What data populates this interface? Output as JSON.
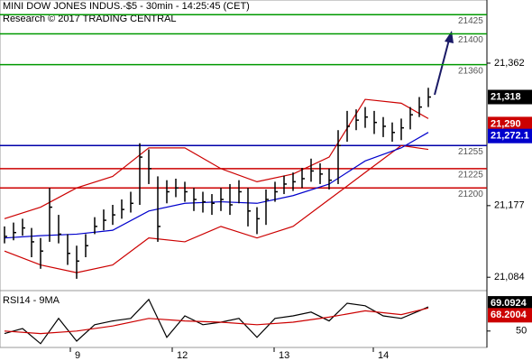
{
  "chart_data": {
    "type": "ohlc",
    "title": "MINI DOW JONES INDUS.-$5 - 30min - 14:25:45 (CET)",
    "subtitle": "Research © 2017 TRADING CENTRAL",
    "x": [
      0,
      1,
      2,
      3,
      4,
      5,
      6,
      7,
      8,
      9,
      10,
      11,
      12,
      13,
      14,
      15,
      16,
      17,
      18,
      19,
      20,
      21,
      22,
      23,
      24,
      25,
      26,
      27,
      28,
      29,
      30,
      31,
      32,
      33,
      34,
      35,
      36,
      37,
      38,
      39,
      40,
      41,
      42,
      43,
      44,
      45,
      46,
      47
    ],
    "high": [
      21150,
      21155,
      21160,
      21148,
      21135,
      21200,
      21165,
      21140,
      21125,
      21140,
      21162,
      21172,
      21178,
      21185,
      21195,
      21258,
      21250,
      21215,
      21210,
      21212,
      21208,
      21200,
      21195,
      21192,
      21200,
      21205,
      21210,
      21200,
      21175,
      21198,
      21208,
      21216,
      21220,
      21226,
      21238,
      21232,
      21225,
      21275,
      21300,
      21302,
      21305,
      21300,
      21292,
      21285,
      21290,
      21305,
      21318,
      21330
    ],
    "low": [
      21128,
      21132,
      21138,
      21110,
      21095,
      21130,
      21128,
      21100,
      21082,
      21110,
      21140,
      21145,
      21152,
      21160,
      21168,
      21178,
      21205,
      21130,
      21180,
      21188,
      21182,
      21170,
      21168,
      21165,
      21170,
      21165,
      21180,
      21150,
      21140,
      21152,
      21182,
      21192,
      21196,
      21200,
      21208,
      21205,
      21198,
      21205,
      21260,
      21275,
      21278,
      21270,
      21266,
      21260,
      21262,
      21276,
      21292,
      21305
    ],
    "close": [
      21137,
      21142,
      21148,
      21130,
      21118,
      21175,
      21140,
      21115,
      21105,
      21125,
      21150,
      21158,
      21165,
      21172,
      21180,
      21240,
      21225,
      21150,
      21195,
      21200,
      21195,
      21185,
      21182,
      21180,
      21185,
      21178,
      21195,
      21170,
      21160,
      21185,
      21195,
      21205,
      21208,
      21212,
      21222,
      21218,
      21210,
      21255,
      21280,
      21288,
      21292,
      21285,
      21280,
      21272,
      21278,
      21295,
      21305,
      21318
    ],
    "close_label": "21,318",
    "color": "#000000",
    "series": [
      {
        "x": [
          0,
          4,
          8,
          12,
          16,
          20,
          24,
          28,
          32,
          36,
          40,
          44,
          47
        ],
        "values": [
          21160,
          21175,
          21200,
          21215,
          21252,
          21252,
          21225,
          21208,
          21218,
          21240,
          21315,
          21310,
          21290
        ],
        "color": "#cc0000",
        "last_label": "21,290"
      },
      {
        "x": [
          0,
          4,
          8,
          12,
          16,
          20,
          24,
          28,
          32,
          36,
          40,
          44,
          47
        ],
        "values": [
          21118,
          21100,
          21090,
          21100,
          21135,
          21130,
          21150,
          21135,
          21150,
          21185,
          21220,
          21255,
          21250
        ],
        "color": "#cc0000"
      },
      {
        "x": [
          0,
          4,
          8,
          12,
          16,
          20,
          24,
          28,
          32,
          36,
          40,
          44,
          47
        ],
        "values": [
          21135,
          21138,
          21140,
          21145,
          21170,
          21180,
          21182,
          21180,
          21190,
          21205,
          21235,
          21252,
          21272.1
        ],
        "color": "#0000cc",
        "last_label": "21,272.1"
      }
    ],
    "levels": [
      {
        "value": 21425,
        "color": "#009900"
      },
      {
        "value": 21400,
        "color": "#009900"
      },
      {
        "value": 21360,
        "color": "#009900"
      },
      {
        "value": 21255,
        "color": "#0000aa"
      },
      {
        "value": 21225,
        "color": "#cc0000"
      },
      {
        "value": 21200,
        "color": "#cc0000"
      }
    ],
    "xlim": [
      -0.5,
      53.5
    ],
    "xticks": [
      {
        "value": 7.3,
        "label": "9"
      },
      {
        "value": 18.6,
        "label": "12"
      },
      {
        "value": 29.9,
        "label": "13"
      },
      {
        "value": 40.9,
        "label": "14"
      }
    ],
    "ylim": [
      21069,
      21444
    ],
    "yticks": [
      {
        "value": 21362,
        "label": "21,362"
      },
      {
        "value": 21177,
        "label": "21,177"
      },
      {
        "value": 21084,
        "label": "21,084"
      }
    ],
    "rsi": {
      "title": "RSI14 - 9MA",
      "ylim": [
        37,
        82
      ],
      "yticks": [
        50
      ],
      "series": [
        {
          "x": [
            0,
            2,
            4,
            6,
            8,
            10,
            12,
            14,
            16,
            18,
            20,
            22,
            24,
            26,
            28,
            30,
            32,
            34,
            36,
            38,
            40,
            42,
            44,
            46,
            47
          ],
          "values": [
            48,
            52,
            40,
            60,
            42,
            55,
            58,
            60,
            75,
            45,
            62,
            55,
            57,
            60,
            45,
            60,
            62,
            65,
            58,
            72,
            70,
            62,
            60,
            66,
            69.0924
          ],
          "color": "#000000",
          "last_label": "69.0924"
        },
        {
          "x": [
            0,
            4,
            8,
            12,
            16,
            20,
            24,
            28,
            32,
            36,
            40,
            44,
            47
          ],
          "values": [
            50,
            48,
            50,
            54,
            60,
            58,
            57,
            55,
            57,
            61,
            66,
            63,
            68.2004
          ],
          "color": "#cc0000",
          "last_label": "68.2004"
        }
      ]
    }
  }
}
